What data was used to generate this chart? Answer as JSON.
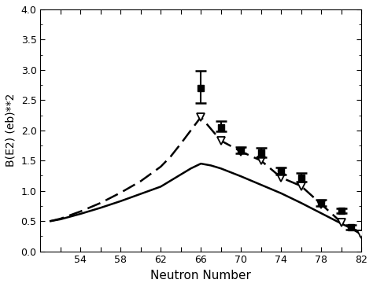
{
  "solid_line_x": [
    51,
    52,
    54,
    56,
    58,
    60,
    62,
    64,
    65,
    66,
    67,
    68,
    70,
    72,
    74,
    76,
    78,
    80,
    82
  ],
  "solid_line_y": [
    0.5,
    0.53,
    0.62,
    0.72,
    0.83,
    0.95,
    1.07,
    1.27,
    1.37,
    1.45,
    1.42,
    1.37,
    1.24,
    1.1,
    0.96,
    0.8,
    0.63,
    0.46,
    0.3
  ],
  "dashed_line_x": [
    51,
    52,
    54,
    56,
    58,
    60,
    62,
    63,
    64,
    65,
    66,
    68,
    70,
    72,
    74,
    76,
    78,
    80,
    82
  ],
  "dashed_line_y": [
    0.5,
    0.54,
    0.66,
    0.8,
    0.97,
    1.16,
    1.4,
    1.57,
    1.78,
    2.0,
    2.22,
    1.83,
    1.65,
    1.5,
    1.22,
    1.08,
    0.78,
    0.48,
    0.28
  ],
  "squares_x": [
    66,
    68,
    70,
    72,
    74,
    76,
    78,
    80,
    81
  ],
  "squares_y": [
    2.7,
    2.05,
    1.67,
    1.63,
    1.33,
    1.22,
    0.8,
    0.67,
    0.4
  ],
  "squares_yerr_lo": [
    0.25,
    0.06,
    0.05,
    0.07,
    0.06,
    0.07,
    0.05,
    0.04,
    0.04
  ],
  "squares_yerr_hi": [
    0.28,
    0.1,
    0.06,
    0.08,
    0.06,
    0.08,
    0.05,
    0.04,
    0.04
  ],
  "triangles_x": [
    66,
    68,
    70,
    72,
    74,
    76,
    78,
    80,
    82
  ],
  "triangles_y": [
    2.22,
    1.83,
    1.65,
    1.5,
    1.22,
    1.08,
    0.78,
    0.48,
    0.28
  ],
  "xlabel": "Neutron Number",
  "ylabel": "B(E2) (eb)**2",
  "xlim": [
    50,
    82
  ],
  "ylim": [
    0.0,
    4.0
  ],
  "xticks": [
    52,
    54,
    56,
    58,
    60,
    62,
    64,
    66,
    68,
    70,
    72,
    74,
    76,
    78,
    80,
    82
  ],
  "xtick_labels": [
    "",
    "54",
    "",
    "58",
    "",
    "62",
    "",
    "66",
    "",
    "70",
    "",
    "74",
    "",
    "78",
    "",
    "82"
  ],
  "yticks": [
    0.0,
    0.5,
    1.0,
    1.5,
    2.0,
    2.5,
    3.0,
    3.5,
    4.0
  ]
}
